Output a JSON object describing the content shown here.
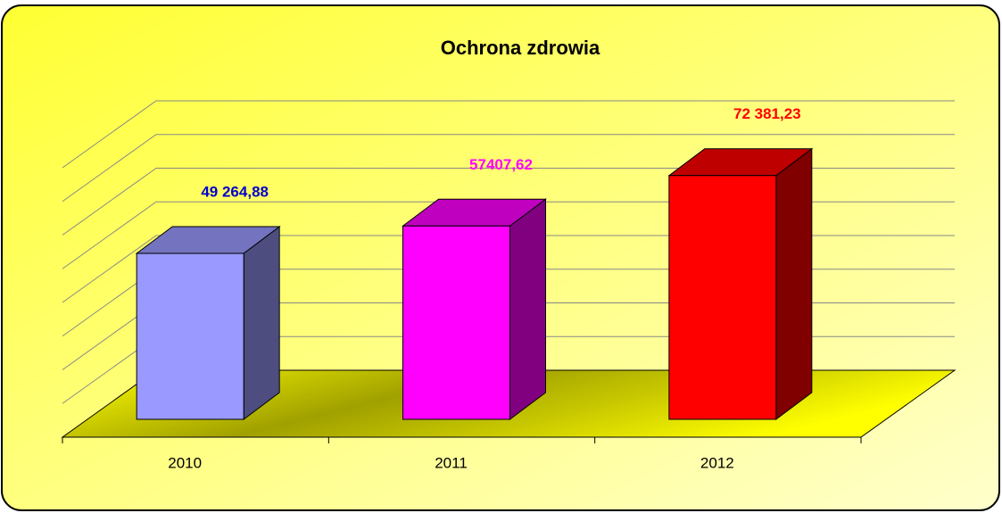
{
  "chart_data": {
    "type": "bar3d",
    "title": "Ochrona zdrowia",
    "categories": [
      "2010",
      "2011",
      "2012"
    ],
    "values": [
      49264.88,
      57407.62,
      72381.23
    ],
    "value_labels": [
      "49 264,88",
      "57407,62",
      "72 381,23"
    ],
    "colors": [
      "#9999ff",
      "#ff00ff",
      "#ff0000"
    ],
    "label_colors": [
      "#0000cc",
      "#ff00ff",
      "#ff0000"
    ],
    "ylim": [
      0,
      80000
    ],
    "yticks": [
      0,
      10000,
      20000,
      30000,
      40000,
      50000,
      60000,
      70000,
      80000
    ],
    "grid": true
  }
}
